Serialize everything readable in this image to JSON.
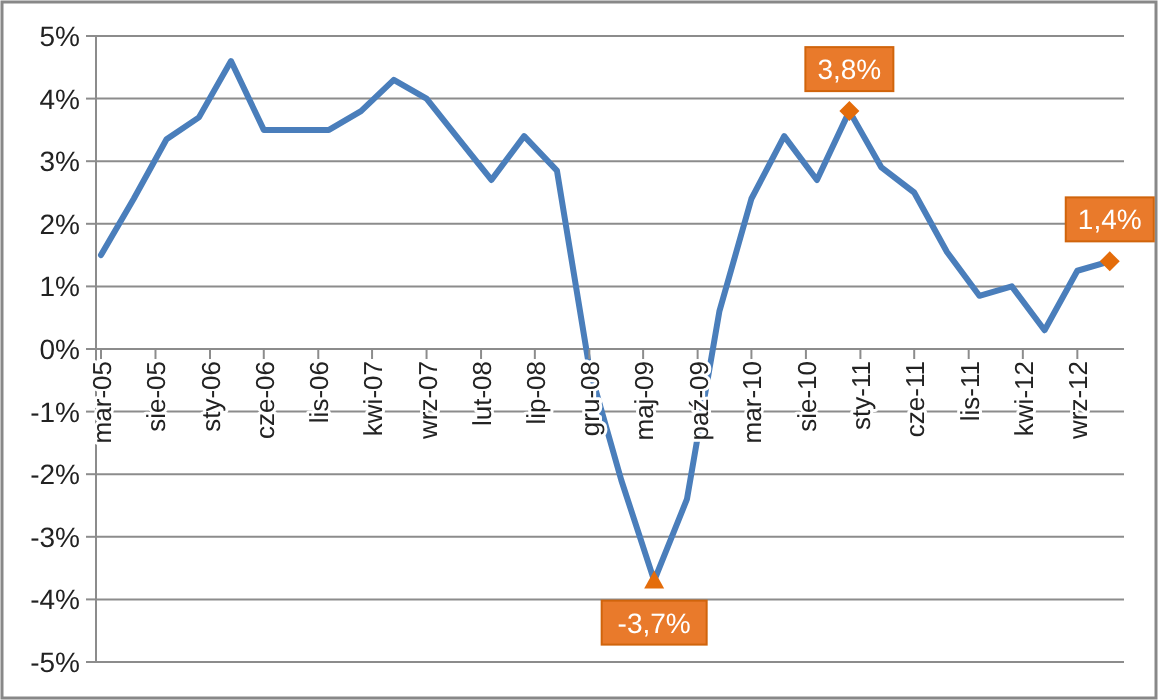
{
  "chart_data": {
    "type": "line",
    "x": [
      "2005-03",
      "2005-06",
      "2005-09",
      "2005-12",
      "2006-03",
      "2006-06",
      "2006-09",
      "2006-12",
      "2007-03",
      "2007-06",
      "2007-09",
      "2007-12",
      "2008-03",
      "2008-06",
      "2008-09",
      "2008-12",
      "2009-03",
      "2009-06",
      "2009-09",
      "2009-12",
      "2010-03",
      "2010-06",
      "2010-09",
      "2010-12",
      "2011-03",
      "2011-06",
      "2011-09",
      "2011-12",
      "2012-03",
      "2012-06",
      "2012-09",
      "2012-12"
    ],
    "series": [
      {
        "color": "#4a7ebb",
        "values": [
          1.5,
          2.4,
          3.35,
          3.7,
          4.6,
          3.5,
          3.5,
          3.5,
          3.8,
          4.3,
          4.0,
          3.35,
          2.7,
          3.4,
          2.85,
          -0.3,
          -2.1,
          -3.7,
          -2.4,
          0.6,
          2.4,
          3.4,
          2.7,
          3.8,
          2.9,
          2.5,
          1.55,
          0.85,
          1.0,
          0.3,
          1.25,
          1.4
        ]
      }
    ],
    "xlim": [
      "2005-02-15",
      "2013-01-10"
    ],
    "xticks": [
      {
        "value": "2005-03",
        "label": "mar-05"
      },
      {
        "value": "2005-08",
        "label": "sie-05"
      },
      {
        "value": "2006-01",
        "label": "sty-06"
      },
      {
        "value": "2006-06",
        "label": "cze-06"
      },
      {
        "value": "2006-11",
        "label": "lis-06"
      },
      {
        "value": "2007-04",
        "label": "kwi-07"
      },
      {
        "value": "2007-09",
        "label": "wrz-07"
      },
      {
        "value": "2008-02",
        "label": "lut-08"
      },
      {
        "value": "2008-07",
        "label": "lip-08"
      },
      {
        "value": "2008-12",
        "label": "gru-08"
      },
      {
        "value": "2009-05",
        "label": "maj-09"
      },
      {
        "value": "2009-10",
        "label": "paź-09"
      },
      {
        "value": "2010-03",
        "label": "mar-10"
      },
      {
        "value": "2010-08",
        "label": "sie-10"
      },
      {
        "value": "2011-01",
        "label": "sty-11"
      },
      {
        "value": "2011-06",
        "label": "cze-11"
      },
      {
        "value": "2011-11",
        "label": "lis-11"
      },
      {
        "value": "2012-04",
        "label": "kwi-12"
      },
      {
        "value": "2012-09",
        "label": "wrz-12"
      }
    ],
    "ylim": [
      -5,
      5
    ],
    "yticks": [
      {
        "value": -5,
        "label": "-5%"
      },
      {
        "value": -4,
        "label": "-4%"
      },
      {
        "value": -3,
        "label": "-3%"
      },
      {
        "value": -2,
        "label": "-2%"
      },
      {
        "value": -1,
        "label": "-1%"
      },
      {
        "value": 0,
        "label": "0%"
      },
      {
        "value": 1,
        "label": "1%"
      },
      {
        "value": 2,
        "label": "2%"
      },
      {
        "value": 3,
        "label": "3%"
      },
      {
        "value": 4,
        "label": "4%"
      },
      {
        "value": 5,
        "label": "5%"
      }
    ],
    "grid": "y",
    "marker": "none",
    "line_style": "solid",
    "annotations": [
      {
        "text": "-3,7%",
        "x": "2009-06",
        "y": -3.7
      },
      {
        "text": "3,8%",
        "x": "2010-12",
        "y": 3.8
      },
      {
        "text": "1,4%",
        "x": "2012-12",
        "y": 1.4
      }
    ]
  }
}
